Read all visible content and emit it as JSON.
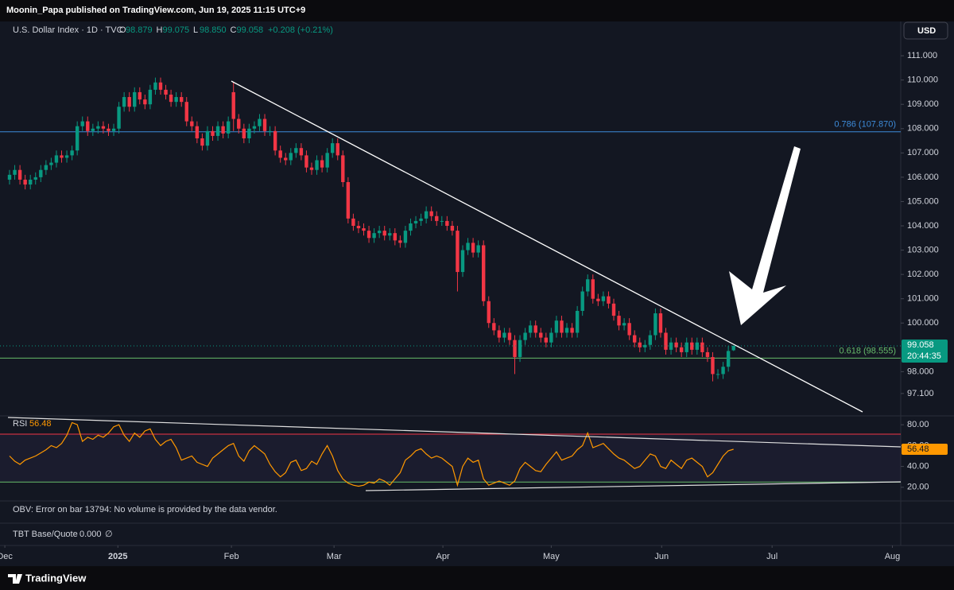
{
  "publisher": "Moonin_Papa published on TradingView.com, Jun 19, 2025 11:15 UTC+9",
  "brand": "TradingView",
  "obv_message": "OBV: Error on bar 13794: No volume is provided by the data vendor.",
  "tbt": {
    "name": "TBT Base/Quote",
    "value": "0.000",
    "symbol": "∅"
  },
  "chart_data": [
    {
      "type": "candlestick",
      "title": "U.S. Dollar Index · 1D · TVC",
      "legend_values": [
        {
          "key": "O",
          "value": "98.879"
        },
        {
          "key": "H",
          "value": "99.075"
        },
        {
          "key": "L",
          "value": "98.850"
        },
        {
          "key": "C",
          "value": "99.058"
        }
      ],
      "change": "+0.208 (+0.21%)",
      "currency": "USD",
      "countdown": "20:44:35",
      "up_color": "#089981",
      "down_color": "#f23645",
      "grid": false,
      "xlim": [
        -1.83,
        171.1
      ],
      "xticks": [
        {
          "value": -0.9,
          "label": "Dec"
        },
        {
          "value": 20.8,
          "label": "2025"
        },
        {
          "value": 42.6,
          "label": "Feb"
        },
        {
          "value": 62.3,
          "label": "Mar"
        },
        {
          "value": 83.2,
          "label": "Apr"
        },
        {
          "value": 104,
          "label": "May"
        },
        {
          "value": 125.2,
          "label": "Jun"
        },
        {
          "value": 146.4,
          "label": "Jul"
        },
        {
          "value": 169.5,
          "label": "Aug"
        }
      ],
      "ylim": [
        96.18,
        112.41
      ],
      "yticks": [
        {
          "value": 97.1,
          "label": "97.100"
        },
        {
          "value": 98,
          "label": "98.000"
        },
        {
          "value": 100,
          "label": "100.000"
        },
        {
          "value": 101,
          "label": "101.000"
        },
        {
          "value": 102,
          "label": "102.000"
        },
        {
          "value": 103,
          "label": "103.000"
        },
        {
          "value": 104,
          "label": "104.000"
        },
        {
          "value": 105,
          "label": "105.000"
        },
        {
          "value": 106,
          "label": "106.000"
        },
        {
          "value": 107,
          "label": "107.000"
        },
        {
          "value": 108,
          "label": "108.000"
        },
        {
          "value": 109,
          "label": "109.000"
        },
        {
          "value": 110,
          "label": "110.000"
        },
        {
          "value": 111,
          "label": "111.000"
        }
      ],
      "fib_levels": [
        {
          "value": 107.87,
          "label": "0.786 (107.870)",
          "color": "#3d8bd9"
        },
        {
          "value": 98.555,
          "label": "0.618 (98.555)",
          "color": "#66bb6a"
        }
      ],
      "open": [
        105.9,
        106.1,
        106.3,
        105.9,
        105.7,
        105.9,
        106.0,
        106.3,
        106.5,
        106.6,
        106.9,
        106.8,
        106.9,
        107.1,
        108.1,
        108.3,
        107.9,
        108.0,
        108.1,
        108.0,
        107.9,
        108.0,
        108.9,
        109.3,
        108.9,
        109.5,
        109.2,
        109.0,
        109.6,
        109.9,
        109.6,
        109.4,
        109.1,
        109.3,
        109.1,
        108.3,
        108.1,
        107.6,
        107.3,
        107.9,
        107.7,
        108.1,
        107.8,
        109.5,
        108.4,
        108.0,
        107.6,
        108.0,
        108.1,
        108.4,
        107.9,
        107.9,
        107.1,
        106.8,
        106.7,
        107.0,
        107.2,
        106.9,
        106.4,
        106.3,
        106.7,
        106.4,
        107.0,
        107.4,
        106.9,
        105.8,
        104.3,
        104.0,
        103.9,
        103.8,
        103.5,
        103.7,
        103.8,
        103.6,
        103.7,
        103.4,
        103.3,
        103.8,
        104.1,
        104.2,
        104.3,
        104.6,
        104.4,
        104.2,
        104.2,
        104.0,
        103.8,
        102.1,
        103.0,
        103.3,
        102.9,
        103.2,
        100.9,
        100.0,
        99.7,
        99.4,
        99.6,
        99.3,
        98.6,
        99.3,
        99.6,
        99.9,
        99.6,
        99.4,
        99.2,
        99.6,
        100.1,
        99.6,
        99.8,
        99.6,
        100.5,
        101.3,
        101.8,
        101.0,
        100.9,
        101.1,
        100.8,
        100.3,
        99.9,
        100.0,
        99.5,
        99.2,
        99.0,
        99.1,
        99.5,
        100.4,
        99.6,
        98.9,
        99.2,
        99.0,
        98.8,
        99.2,
        98.9,
        99.2,
        98.8,
        98.6,
        97.9,
        97.9,
        98.2,
        98.879
      ],
      "high": [
        106.3,
        106.5,
        106.5,
        106.1,
        106.1,
        106.2,
        106.5,
        106.7,
        106.8,
        107.1,
        107.1,
        107.1,
        107.3,
        108.3,
        108.5,
        108.5,
        108.2,
        108.3,
        108.3,
        108.2,
        108.2,
        109.1,
        109.5,
        109.5,
        109.7,
        109.7,
        109.4,
        109.8,
        110.1,
        110.1,
        109.8,
        109.6,
        109.5,
        109.5,
        109.3,
        108.5,
        108.3,
        107.8,
        108.1,
        108.1,
        108.3,
        108.3,
        108.5,
        109.9,
        108.6,
        108.2,
        108.2,
        108.3,
        108.6,
        108.6,
        108.1,
        108.1,
        107.3,
        107.0,
        107.2,
        107.4,
        107.4,
        107.1,
        106.6,
        106.9,
        106.9,
        107.2,
        107.6,
        107.6,
        107.1,
        106.0,
        104.5,
        104.2,
        104.1,
        104.0,
        103.9,
        104.0,
        104.0,
        103.9,
        103.9,
        103.6,
        104.0,
        104.3,
        104.4,
        104.5,
        104.8,
        104.8,
        104.6,
        104.4,
        104.4,
        104.2,
        104.0,
        103.2,
        103.5,
        103.5,
        103.4,
        103.4,
        101.1,
        100.2,
        99.9,
        99.8,
        99.8,
        99.5,
        99.5,
        99.8,
        100.1,
        100.1,
        99.8,
        99.6,
        99.8,
        100.3,
        100.3,
        100.0,
        100.0,
        100.7,
        101.5,
        102.0,
        102.0,
        101.2,
        101.3,
        101.3,
        101.0,
        100.5,
        100.2,
        100.2,
        99.7,
        99.4,
        99.3,
        99.7,
        100.6,
        100.6,
        99.8,
        99.4,
        99.4,
        99.2,
        99.4,
        99.4,
        99.4,
        99.4,
        99.0,
        98.8,
        98.1,
        98.4,
        99.05,
        99.075
      ],
      "low": [
        105.7,
        105.9,
        105.7,
        105.5,
        105.5,
        105.7,
        105.8,
        106.1,
        106.3,
        106.4,
        106.6,
        106.6,
        106.7,
        106.9,
        107.9,
        107.7,
        107.7,
        107.8,
        107.8,
        107.7,
        107.7,
        107.8,
        108.7,
        108.7,
        108.7,
        109.0,
        108.8,
        108.8,
        109.4,
        109.4,
        109.2,
        108.9,
        108.9,
        108.9,
        108.1,
        107.9,
        107.4,
        107.1,
        107.1,
        107.5,
        107.5,
        107.6,
        107.6,
        107.9,
        107.8,
        107.4,
        107.4,
        107.8,
        107.9,
        107.7,
        107.7,
        106.9,
        106.6,
        106.5,
        106.5,
        106.8,
        106.7,
        106.2,
        106.1,
        106.1,
        106.2,
        106.2,
        106.8,
        106.7,
        105.6,
        104.1,
        103.8,
        103.7,
        103.6,
        103.3,
        103.3,
        103.5,
        103.4,
        103.4,
        103.2,
        103.1,
        103.1,
        103.6,
        103.9,
        104.0,
        104.1,
        104.2,
        104.0,
        104.0,
        103.8,
        103.6,
        101.3,
        101.9,
        102.8,
        102.7,
        102.7,
        100.7,
        99.8,
        99.5,
        99.2,
        99.2,
        99.1,
        97.9,
        98.4,
        99.1,
        99.4,
        99.4,
        99.2,
        99.0,
        99.0,
        99.4,
        99.4,
        99.4,
        99.4,
        99.4,
        100.3,
        101.1,
        100.8,
        100.7,
        100.7,
        100.6,
        100.1,
        99.7,
        99.7,
        99.3,
        99.0,
        98.8,
        98.8,
        98.9,
        99.3,
        99.4,
        98.7,
        98.7,
        98.8,
        98.6,
        98.6,
        98.7,
        98.7,
        98.6,
        98.4,
        97.6,
        97.7,
        97.7,
        98.0,
        98.85
      ],
      "close": [
        106.1,
        106.3,
        105.9,
        105.7,
        105.9,
        106.0,
        106.3,
        106.5,
        106.6,
        106.9,
        106.8,
        106.9,
        107.1,
        108.1,
        108.3,
        107.9,
        108.0,
        108.1,
        108.0,
        107.9,
        108.0,
        108.9,
        109.3,
        108.9,
        109.5,
        109.2,
        109.0,
        109.6,
        109.9,
        109.6,
        109.4,
        109.1,
        109.3,
        109.1,
        108.3,
        108.1,
        107.6,
        107.3,
        107.9,
        107.7,
        108.1,
        107.8,
        108.3,
        108.4,
        108.0,
        107.6,
        108.0,
        108.1,
        108.4,
        107.9,
        107.9,
        107.1,
        106.8,
        106.7,
        107.0,
        107.2,
        106.9,
        106.4,
        106.3,
        106.7,
        106.4,
        107.0,
        107.4,
        106.9,
        105.8,
        104.3,
        104.0,
        103.9,
        103.8,
        103.5,
        103.7,
        103.8,
        103.6,
        103.7,
        103.4,
        103.3,
        103.8,
        104.1,
        104.2,
        104.3,
        104.6,
        104.4,
        104.2,
        104.2,
        104.0,
        103.8,
        102.1,
        103.0,
        103.3,
        102.9,
        103.2,
        100.9,
        100.0,
        99.7,
        99.4,
        99.6,
        99.3,
        98.6,
        99.3,
        99.6,
        99.9,
        99.6,
        99.4,
        99.2,
        99.6,
        100.1,
        99.6,
        99.8,
        99.6,
        100.5,
        101.3,
        101.8,
        101.0,
        100.9,
        101.1,
        100.8,
        100.3,
        99.9,
        100.0,
        99.5,
        99.2,
        99.0,
        99.1,
        99.5,
        100.4,
        99.6,
        98.9,
        99.2,
        99.0,
        98.8,
        99.2,
        98.9,
        99.2,
        98.8,
        98.6,
        97.9,
        97.9,
        98.2,
        98.85,
        99.058
      ]
    },
    {
      "type": "line",
      "ylim": [
        6.9,
        88.5
      ],
      "yticks": [
        {
          "value": 20,
          "label": "20.00"
        },
        {
          "value": 40,
          "label": "40.00"
        },
        {
          "value": 60,
          "label": "60.00"
        },
        {
          "value": 80,
          "label": "80.00"
        }
      ],
      "levels": [
        {
          "value": 71,
          "color": "#f23645"
        },
        {
          "value": 25,
          "color": "#66bb6a"
        }
      ],
      "series": [
        {
          "name": "RSI",
          "color": "#ff9800",
          "values": [
            50,
            45,
            42,
            46,
            48,
            50,
            53,
            56,
            60,
            58,
            62,
            70,
            82,
            80,
            64,
            68,
            66,
            70,
            68,
            72,
            78,
            80,
            70,
            64,
            72,
            68,
            74,
            76,
            66,
            60,
            64,
            66,
            58,
            46,
            48,
            50,
            44,
            42,
            40,
            48,
            52,
            56,
            60,
            62,
            50,
            45,
            55,
            60,
            56,
            52,
            42,
            35,
            30,
            34,
            44,
            46,
            36,
            38,
            45,
            42,
            52,
            60,
            50,
            36,
            28,
            24,
            22,
            21,
            22,
            25,
            24,
            28,
            26,
            22,
            28,
            34,
            46,
            50,
            55,
            57,
            52,
            48,
            50,
            48,
            44,
            40,
            22,
            40,
            48,
            44,
            46,
            28,
            22,
            24,
            26,
            24,
            22,
            26,
            38,
            44,
            40,
            36,
            35,
            42,
            48,
            54,
            46,
            48,
            50,
            56,
            60,
            72,
            58,
            60,
            62,
            57,
            52,
            48,
            46,
            42,
            38,
            40,
            46,
            52,
            50,
            40,
            38,
            46,
            42,
            38,
            46,
            48,
            44,
            40,
            30,
            34,
            42,
            50,
            55,
            56.48
          ]
        }
      ]
    }
  ]
}
